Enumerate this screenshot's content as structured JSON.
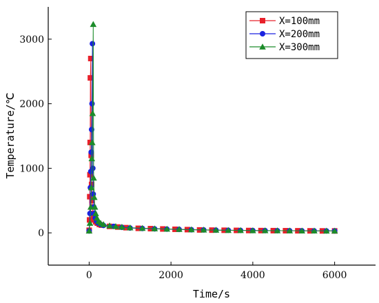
{
  "chart_data": {
    "type": "line",
    "xlabel": "Time/s",
    "ylabel": "Temperature/℃",
    "xlim": [
      -1000,
      7000
    ],
    "ylim": [
      -500,
      3500
    ],
    "xticks": [
      0,
      2000,
      4000,
      6000
    ],
    "yticks": [
      0,
      1000,
      2000,
      3000
    ],
    "legend_position": "top-right",
    "series": [
      {
        "name": "X=100mm",
        "color": "#e8202a",
        "marker": "square",
        "points": [
          [
            0,
            40
          ],
          [
            10,
            200
          ],
          [
            15,
            560
          ],
          [
            20,
            900
          ],
          [
            25,
            1400
          ],
          [
            30,
            2400
          ],
          [
            40,
            2700
          ],
          [
            50,
            1200
          ],
          [
            60,
            750
          ],
          [
            70,
            500
          ],
          [
            80,
            400
          ],
          [
            95,
            300
          ],
          [
            110,
            250
          ],
          [
            130,
            200
          ],
          [
            160,
            170
          ],
          [
            200,
            150
          ],
          [
            250,
            130
          ],
          [
            300,
            120
          ],
          [
            500,
            100
          ],
          [
            700,
            90
          ],
          [
            900,
            80
          ],
          [
            1200,
            70
          ],
          [
            1500,
            65
          ],
          [
            1800,
            60
          ],
          [
            2100,
            55
          ],
          [
            2400,
            50
          ],
          [
            2700,
            45
          ],
          [
            3000,
            42
          ],
          [
            3300,
            40
          ],
          [
            3600,
            38
          ],
          [
            3900,
            36
          ],
          [
            4200,
            35
          ],
          [
            4500,
            34
          ],
          [
            4800,
            33
          ],
          [
            5100,
            32
          ],
          [
            5400,
            31
          ],
          [
            5700,
            30
          ],
          [
            6000,
            30
          ]
        ]
      },
      {
        "name": "X=200mm",
        "color": "#1a22e0",
        "marker": "circle",
        "points": [
          [
            0,
            30
          ],
          [
            20,
            300
          ],
          [
            30,
            700
          ],
          [
            40,
            950
          ],
          [
            50,
            1250
          ],
          [
            60,
            1600
          ],
          [
            70,
            2000
          ],
          [
            80,
            2930
          ],
          [
            90,
            1000
          ],
          [
            100,
            600
          ],
          [
            115,
            400
          ],
          [
            130,
            300
          ],
          [
            150,
            230
          ],
          [
            180,
            180
          ],
          [
            220,
            150
          ],
          [
            280,
            130
          ],
          [
            350,
            115
          ],
          [
            600,
            100
          ],
          [
            800,
            85
          ],
          [
            1000,
            75
          ],
          [
            1300,
            68
          ],
          [
            1600,
            62
          ],
          [
            1900,
            58
          ],
          [
            2200,
            53
          ],
          [
            2500,
            48
          ],
          [
            2800,
            45
          ],
          [
            3100,
            42
          ],
          [
            3400,
            40
          ],
          [
            3700,
            38
          ],
          [
            4000,
            36
          ],
          [
            4300,
            35
          ],
          [
            4600,
            34
          ],
          [
            4900,
            33
          ],
          [
            5200,
            32
          ],
          [
            5500,
            31
          ],
          [
            5800,
            30
          ],
          [
            6000,
            30
          ]
        ]
      },
      {
        "name": "X=300mm",
        "color": "#1c8c2a",
        "marker": "triangle",
        "points": [
          [
            0,
            30
          ],
          [
            20,
            150
          ],
          [
            40,
            400
          ],
          [
            55,
            700
          ],
          [
            65,
            1150
          ],
          [
            75,
            1400
          ],
          [
            85,
            1850
          ],
          [
            100,
            3230
          ],
          [
            110,
            850
          ],
          [
            125,
            550
          ],
          [
            140,
            400
          ],
          [
            160,
            300
          ],
          [
            190,
            230
          ],
          [
            230,
            180
          ],
          [
            280,
            150
          ],
          [
            350,
            130
          ],
          [
            500,
            110
          ],
          [
            650,
            100
          ],
          [
            800,
            90
          ],
          [
            1000,
            80
          ],
          [
            1300,
            72
          ],
          [
            1600,
            65
          ],
          [
            1900,
            60
          ],
          [
            2200,
            55
          ],
          [
            2500,
            50
          ],
          [
            2800,
            46
          ],
          [
            3100,
            43
          ],
          [
            3400,
            40
          ],
          [
            3700,
            38
          ],
          [
            4000,
            36
          ],
          [
            4300,
            35
          ],
          [
            4600,
            34
          ],
          [
            4900,
            33
          ],
          [
            5200,
            32
          ],
          [
            5500,
            31
          ],
          [
            5800,
            30
          ],
          [
            6000,
            30
          ]
        ]
      }
    ]
  }
}
